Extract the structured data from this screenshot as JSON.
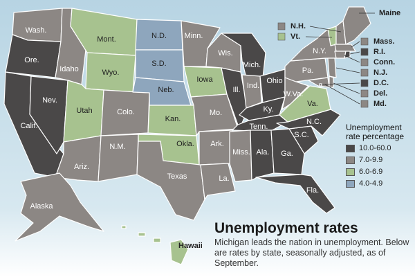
{
  "title": "Unemployment rates",
  "subtitle": "Michigan leads the nation in unemployment. Below are rates by state, seasonally adjusted, as of September.",
  "legend": {
    "title": "Unemployment rate percentage",
    "items": [
      {
        "range": "10.0-60.0",
        "color": "#4a4848"
      },
      {
        "range": "7.0-9.9",
        "color": "#8c8784"
      },
      {
        "range": "6.0-6.9",
        "color": "#a7c28f"
      },
      {
        "range": "4.0-4.9",
        "color": "#8ea6bd"
      }
    ]
  },
  "states": {
    "wa": {
      "label": "Wash.",
      "bin": "7.0-9.9"
    },
    "or": {
      "label": "Ore.",
      "bin": "10.0-60.0"
    },
    "ca": {
      "label": "Calif.",
      "bin": "10.0-60.0"
    },
    "nv": {
      "label": "Nev.",
      "bin": "10.0-60.0"
    },
    "id": {
      "label": "Idaho",
      "bin": "7.0-9.9"
    },
    "mt": {
      "label": "Mont.",
      "bin": "6.0-6.9"
    },
    "wy": {
      "label": "Wyo.",
      "bin": "6.0-6.9"
    },
    "ut": {
      "label": "Utah",
      "bin": "6.0-6.9"
    },
    "az": {
      "label": "Ariz.",
      "bin": "7.0-9.9"
    },
    "co": {
      "label": "Colo.",
      "bin": "7.0-9.9"
    },
    "nm": {
      "label": "N.M.",
      "bin": "7.0-9.9"
    },
    "nd": {
      "label": "N.D.",
      "bin": "4.0-4.9"
    },
    "sd": {
      "label": "S.D.",
      "bin": "4.0-4.9"
    },
    "ne": {
      "label": "Neb.",
      "bin": "4.0-4.9"
    },
    "ks": {
      "label": "Kan.",
      "bin": "6.0-6.9"
    },
    "ok": {
      "label": "Okla.",
      "bin": "6.0-6.9"
    },
    "tx": {
      "label": "Texas",
      "bin": "7.0-9.9"
    },
    "mn": {
      "label": "Minn.",
      "bin": "7.0-9.9"
    },
    "ia": {
      "label": "Iowa",
      "bin": "6.0-6.9"
    },
    "mo": {
      "label": "Mo.",
      "bin": "7.0-9.9"
    },
    "ar": {
      "label": "Ark.",
      "bin": "7.0-9.9"
    },
    "la": {
      "label": "La.",
      "bin": "7.0-9.9"
    },
    "wi": {
      "label": "Wis.",
      "bin": "7.0-9.9"
    },
    "il": {
      "label": "Ill.",
      "bin": "10.0-60.0"
    },
    "mi": {
      "label": "Mich.",
      "bin": "10.0-60.0"
    },
    "in": {
      "label": "Ind.",
      "bin": "7.0-9.9"
    },
    "oh": {
      "label": "Ohio",
      "bin": "10.0-60.0"
    },
    "ky": {
      "label": "Ky.",
      "bin": "10.0-60.0"
    },
    "tn": {
      "label": "Tenn.",
      "bin": "10.0-60.0"
    },
    "ms": {
      "label": "Miss.",
      "bin": "7.0-9.9"
    },
    "al": {
      "label": "Ala.",
      "bin": "10.0-60.0"
    },
    "ga": {
      "label": "Ga.",
      "bin": "10.0-60.0"
    },
    "fl": {
      "label": "Fla.",
      "bin": "10.0-60.0"
    },
    "sc": {
      "label": "S.C.",
      "bin": "10.0-60.0"
    },
    "nc": {
      "label": "N.C.",
      "bin": "10.0-60.0"
    },
    "va": {
      "label": "Va.",
      "bin": "6.0-6.9"
    },
    "wv": {
      "label": "W.Va.",
      "bin": "7.0-9.9"
    },
    "pa": {
      "label": "Pa.",
      "bin": "7.0-9.9"
    },
    "ny": {
      "label": "N.Y.",
      "bin": "7.0-9.9"
    },
    "me": {
      "label": "Maine",
      "bin": "7.0-9.9"
    },
    "nh": {
      "label": "N.H.",
      "bin": "7.0-9.9"
    },
    "vt": {
      "label": "Vt.",
      "bin": "6.0-6.9"
    },
    "ma": {
      "label": "Mass.",
      "bin": "7.0-9.9"
    },
    "ri": {
      "label": "R.I.",
      "bin": "10.0-60.0"
    },
    "ct": {
      "label": "Conn.",
      "bin": "7.0-9.9"
    },
    "nj": {
      "label": "N.J.",
      "bin": "7.0-9.9"
    },
    "dc": {
      "label": "D.C.",
      "bin": "10.0-60.0"
    },
    "de": {
      "label": "Del.",
      "bin": "7.0-9.9"
    },
    "md": {
      "label": "Md.",
      "bin": "7.0-9.9"
    },
    "ak": {
      "label": "Alaska",
      "bin": "7.0-9.9"
    },
    "hi": {
      "label": "Hawaii",
      "bin": "6.0-6.9"
    }
  }
}
